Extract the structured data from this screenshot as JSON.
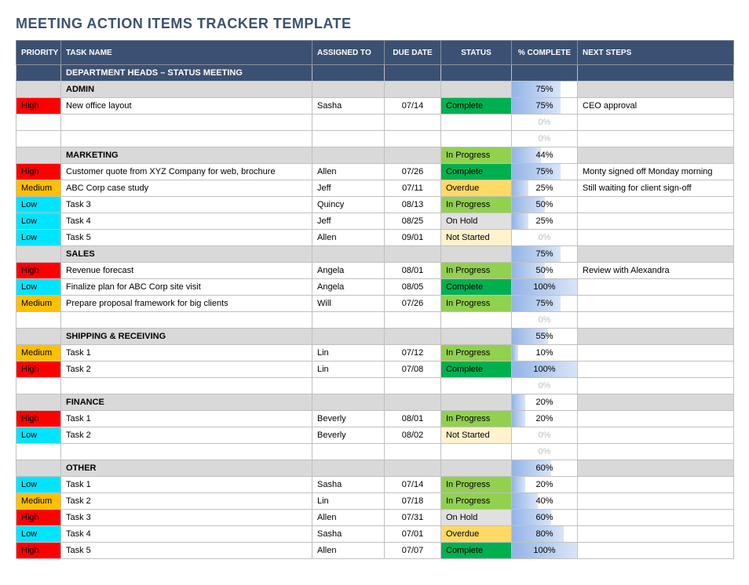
{
  "title": "MEETING ACTION ITEMS TRACKER TEMPLATE",
  "columns": {
    "priority": "PRIORITY",
    "task": "TASK NAME",
    "assigned": "ASSIGNED TO",
    "due": "DUE DATE",
    "status": "STATUS",
    "pct": "% COMPLETE",
    "next": "NEXT STEPS"
  },
  "priorityColors": {
    "High": "#ff0000",
    "Medium": "#ffc000",
    "Low": "#00e5ff"
  },
  "statusColors": {
    "Complete": "#00b050",
    "In Progress": "#92d050",
    "Overdue": "#ffd966",
    "On Hold": "#e0e0e0",
    "Not Started": "#fff2cc"
  },
  "sectionBg": "#d9d9d9",
  "headerBg": "#3b5173",
  "pctBarGradient": [
    "#93b4e6",
    "#d9e5f7"
  ],
  "rows": [
    {
      "type": "section",
      "task": "DEPARTMENT HEADS – STATUS MEETING",
      "darkHeader": true
    },
    {
      "type": "section",
      "task": "ADMIN",
      "pct": 75
    },
    {
      "type": "task",
      "priority": "High",
      "task": "New office layout",
      "assigned": "Sasha",
      "due": "07/14",
      "status": "Complete",
      "pct": 75,
      "next": "CEO approval"
    },
    {
      "type": "task",
      "priority": "",
      "task": "",
      "assigned": "",
      "due": "",
      "status": "",
      "pct": 0,
      "next": ""
    },
    {
      "type": "task",
      "priority": "",
      "task": "",
      "assigned": "",
      "due": "",
      "status": "",
      "pct": 0,
      "next": ""
    },
    {
      "type": "section",
      "task": "MARKETING",
      "status": "In Progress",
      "pct": 44
    },
    {
      "type": "task",
      "priority": "High",
      "task": "Customer quote from XYZ Company for web, brochure",
      "assigned": "Allen",
      "due": "07/26",
      "status": "Complete",
      "pct": 75,
      "next": "Monty signed off Monday morning"
    },
    {
      "type": "task",
      "priority": "Medium",
      "task": "ABC Corp case study",
      "assigned": "Jeff",
      "due": "07/11",
      "status": "Overdue",
      "pct": 25,
      "next": "Still waiting for client sign-off"
    },
    {
      "type": "task",
      "priority": "Low",
      "task": "Task 3",
      "assigned": "Quincy",
      "due": "08/13",
      "status": "In Progress",
      "pct": 50,
      "next": ""
    },
    {
      "type": "task",
      "priority": "Low",
      "task": "Task 4",
      "assigned": "Jeff",
      "due": "08/25",
      "status": "On Hold",
      "pct": 25,
      "next": ""
    },
    {
      "type": "task",
      "priority": "Low",
      "task": "Task 5",
      "assigned": "Allen",
      "due": "09/01",
      "status": "Not Started",
      "pct": 0,
      "next": ""
    },
    {
      "type": "section",
      "task": "SALES",
      "pct": 75
    },
    {
      "type": "task",
      "priority": "High",
      "task": "Revenue forecast",
      "assigned": "Angela",
      "due": "08/01",
      "status": "In Progress",
      "pct": 50,
      "next": "Review with Alexandra"
    },
    {
      "type": "task",
      "priority": "Low",
      "task": "Finalize plan for ABC Corp site visit",
      "assigned": "Angela",
      "due": "08/05",
      "status": "Complete",
      "pct": 100,
      "next": ""
    },
    {
      "type": "task",
      "priority": "Medium",
      "task": "Prepare proposal framework for big clients",
      "assigned": "Will",
      "due": "07/26",
      "status": "In Progress",
      "pct": 75,
      "next": ""
    },
    {
      "type": "task",
      "priority": "",
      "task": "",
      "assigned": "",
      "due": "",
      "status": "",
      "pct": 0,
      "next": ""
    },
    {
      "type": "section",
      "task": "SHIPPING & RECEIVING",
      "pct": 55
    },
    {
      "type": "task",
      "priority": "Medium",
      "task": "Task 1",
      "assigned": "Lin",
      "due": "07/12",
      "status": "In Progress",
      "pct": 10,
      "next": ""
    },
    {
      "type": "task",
      "priority": "High",
      "task": "Task 2",
      "assigned": "Lin",
      "due": "07/08",
      "status": "Complete",
      "pct": 100,
      "next": ""
    },
    {
      "type": "task",
      "priority": "",
      "task": "",
      "assigned": "",
      "due": "",
      "status": "",
      "pct": 0,
      "next": ""
    },
    {
      "type": "section",
      "task": "FINANCE",
      "pct": 20
    },
    {
      "type": "task",
      "priority": "High",
      "task": "Task 1",
      "assigned": "Beverly",
      "due": "08/01",
      "status": "In Progress",
      "pct": 20,
      "next": ""
    },
    {
      "type": "task",
      "priority": "Low",
      "task": "Task 2",
      "assigned": "Beverly",
      "due": "08/02",
      "status": "Not Started",
      "pct": 0,
      "next": ""
    },
    {
      "type": "task",
      "priority": "",
      "task": "",
      "assigned": "",
      "due": "",
      "status": "",
      "pct": 0,
      "next": ""
    },
    {
      "type": "section",
      "task": "OTHER",
      "pct": 60
    },
    {
      "type": "task",
      "priority": "Low",
      "task": "Task 1",
      "assigned": "Sasha",
      "due": "07/14",
      "status": "In Progress",
      "pct": 20,
      "next": ""
    },
    {
      "type": "task",
      "priority": "Medium",
      "task": "Task 2",
      "assigned": "Lin",
      "due": "07/18",
      "status": "In Progress",
      "pct": 40,
      "next": ""
    },
    {
      "type": "task",
      "priority": "High",
      "task": "Task 3",
      "assigned": "Allen",
      "due": "07/31",
      "status": "On Hold",
      "pct": 60,
      "next": ""
    },
    {
      "type": "task",
      "priority": "Low",
      "task": "Task 4",
      "assigned": "Sasha",
      "due": "07/01",
      "status": "Overdue",
      "pct": 80,
      "next": ""
    },
    {
      "type": "task",
      "priority": "High",
      "task": "Task 5",
      "assigned": "Allen",
      "due": "07/07",
      "status": "Complete",
      "pct": 100,
      "next": ""
    }
  ]
}
